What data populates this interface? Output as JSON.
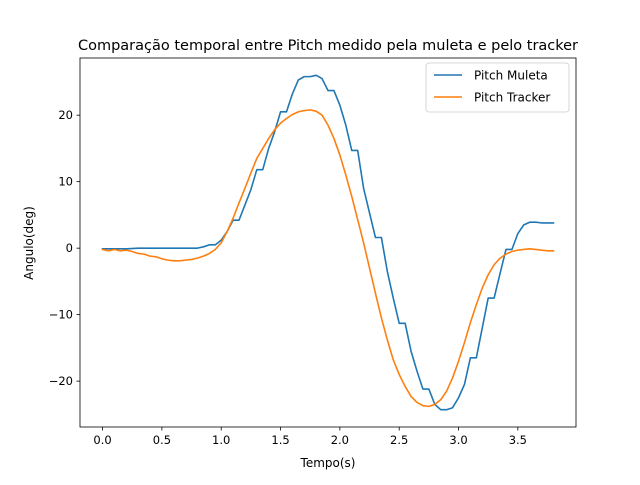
{
  "chart_data": {
    "type": "line",
    "title": "Comparação temporal entre Pitch medido pela muleta e pelo tracker",
    "xlabel": "Tempo(s)",
    "ylabel": "Angulo(deg)",
    "xlim": [
      -0.19,
      3.99
    ],
    "ylim": [
      -26.9,
      28.6
    ],
    "xticks": [
      0.0,
      0.5,
      1.0,
      1.5,
      2.0,
      2.5,
      3.0,
      3.5
    ],
    "xtick_labels": [
      "0.0",
      "0.5",
      "1.0",
      "1.5",
      "2.0",
      "2.5",
      "3.0",
      "3.5"
    ],
    "yticks": [
      -20,
      -10,
      0,
      10,
      20
    ],
    "ytick_labels": [
      "−20",
      "−10",
      "0",
      "10",
      "20"
    ],
    "grid": false,
    "legend": "upper right",
    "series": [
      {
        "name": "Pitch Muleta",
        "color": "#1f77b4",
        "x": [
          0.0,
          0.1,
          0.2,
          0.3,
          0.4,
          0.5,
          0.6,
          0.7,
          0.8,
          0.85,
          0.9,
          0.95,
          1.0,
          1.05,
          1.1,
          1.15,
          1.2,
          1.25,
          1.3,
          1.35,
          1.4,
          1.45,
          1.5,
          1.55,
          1.6,
          1.65,
          1.7,
          1.75,
          1.8,
          1.85,
          1.9,
          1.95,
          2.0,
          2.05,
          2.1,
          2.15,
          2.2,
          2.25,
          2.3,
          2.35,
          2.4,
          2.45,
          2.5,
          2.55,
          2.6,
          2.65,
          2.7,
          2.75,
          2.8,
          2.85,
          2.9,
          2.95,
          3.0,
          3.05,
          3.1,
          3.15,
          3.2,
          3.25,
          3.3,
          3.35,
          3.4,
          3.45,
          3.5,
          3.55,
          3.6,
          3.65,
          3.7,
          3.75,
          3.8
        ],
        "y": [
          -0.1,
          -0.1,
          -0.1,
          0.0,
          0.0,
          0.0,
          0.0,
          0.0,
          0.0,
          0.2,
          0.5,
          0.5,
          1.2,
          2.5,
          4.2,
          4.2,
          6.5,
          8.8,
          11.8,
          11.8,
          15.0,
          17.5,
          20.5,
          20.5,
          23.2,
          25.3,
          25.8,
          25.8,
          26.0,
          25.5,
          23.7,
          23.7,
          21.5,
          18.5,
          14.7,
          14.7,
          9.0,
          5.3,
          1.6,
          1.6,
          -3.5,
          -7.5,
          -11.3,
          -11.3,
          -15.5,
          -18.5,
          -21.2,
          -21.2,
          -23.5,
          -24.3,
          -24.3,
          -24.0,
          -22.5,
          -20.5,
          -16.5,
          -16.5,
          -12.0,
          -7.5,
          -7.5,
          -3.8,
          -0.2,
          -0.2,
          2.2,
          3.5,
          3.9,
          3.9,
          3.8,
          3.8,
          3.8
        ]
      },
      {
        "name": "Pitch Tracker",
        "color": "#ff7f0e",
        "x": [
          0.0,
          0.05,
          0.1,
          0.15,
          0.2,
          0.25,
          0.3,
          0.35,
          0.4,
          0.45,
          0.5,
          0.55,
          0.6,
          0.65,
          0.7,
          0.75,
          0.8,
          0.85,
          0.9,
          0.95,
          1.0,
          1.05,
          1.1,
          1.15,
          1.2,
          1.25,
          1.3,
          1.35,
          1.4,
          1.45,
          1.5,
          1.55,
          1.6,
          1.65,
          1.7,
          1.75,
          1.8,
          1.85,
          1.9,
          1.95,
          2.0,
          2.05,
          2.1,
          2.15,
          2.2,
          2.25,
          2.3,
          2.35,
          2.4,
          2.45,
          2.5,
          2.55,
          2.6,
          2.65,
          2.7,
          2.75,
          2.8,
          2.85,
          2.9,
          2.95,
          3.0,
          3.05,
          3.1,
          3.15,
          3.2,
          3.25,
          3.3,
          3.35,
          3.4,
          3.45,
          3.5,
          3.55,
          3.6,
          3.65,
          3.7,
          3.75,
          3.8
        ],
        "y": [
          -0.2,
          -0.4,
          -0.2,
          -0.4,
          -0.3,
          -0.5,
          -0.8,
          -0.9,
          -1.2,
          -1.3,
          -1.6,
          -1.8,
          -1.9,
          -1.9,
          -1.8,
          -1.7,
          -1.5,
          -1.2,
          -0.8,
          -0.2,
          0.8,
          2.5,
          4.5,
          6.8,
          9.0,
          11.3,
          13.5,
          15.0,
          16.5,
          17.8,
          18.8,
          19.5,
          20.1,
          20.5,
          20.7,
          20.8,
          20.6,
          20.0,
          18.5,
          16.5,
          14.0,
          11.0,
          7.8,
          4.3,
          0.8,
          -3.0,
          -6.8,
          -10.5,
          -13.8,
          -16.8,
          -19.0,
          -20.8,
          -22.3,
          -23.2,
          -23.7,
          -23.8,
          -23.5,
          -22.8,
          -21.5,
          -19.5,
          -17.0,
          -14.2,
          -11.2,
          -8.5,
          -6.0,
          -4.0,
          -2.5,
          -1.5,
          -0.9,
          -0.5,
          -0.3,
          -0.2,
          -0.1,
          -0.2,
          -0.3,
          -0.4,
          -0.4
        ]
      }
    ]
  }
}
